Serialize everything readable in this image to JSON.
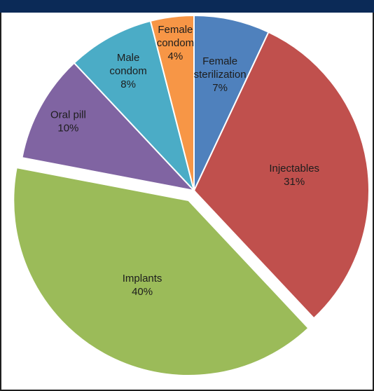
{
  "chart_data": {
    "type": "pie",
    "title": "",
    "slices": [
      {
        "label_lines": [
          "Female",
          "sterilization"
        ],
        "value": 7,
        "value_label": "7%",
        "color": "#4f81bd"
      },
      {
        "label_lines": [
          "Injectables"
        ],
        "value": 31,
        "value_label": "31%",
        "color": "#c0504d"
      },
      {
        "label_lines": [
          "Implants"
        ],
        "value": 40,
        "value_label": "40%",
        "color": "#9bbb59",
        "exploded": true
      },
      {
        "label_lines": [
          "Oral pill"
        ],
        "value": 10,
        "value_label": "10%",
        "color": "#8064a2"
      },
      {
        "label_lines": [
          "Male",
          "condom"
        ],
        "value": 8,
        "value_label": "8%",
        "color": "#4bacc6"
      },
      {
        "label_lines": [
          "Female",
          "condom"
        ],
        "value": 4,
        "value_label": "4%",
        "color": "#f79646"
      }
    ],
    "start_angle_deg": 0,
    "direction": "clockwise",
    "legend": "none"
  }
}
